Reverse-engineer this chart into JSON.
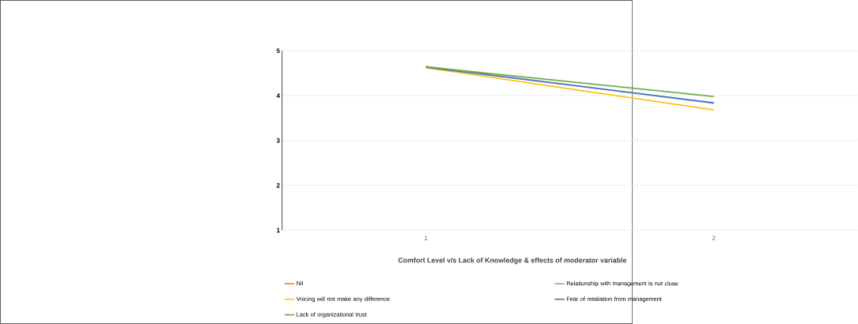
{
  "chart_data": {
    "type": "line",
    "title": "Comfort Level v/s Lack of Knowledge & effects of moderator variable",
    "categories": [
      "1",
      "2"
    ],
    "series": [
      {
        "name": "Nil",
        "color": "#ed7d31",
        "values": [
          null,
          null
        ]
      },
      {
        "name": "Relationship with management is not close",
        "color": "#a5a5a5",
        "values": [
          4.65,
          3.83
        ]
      },
      {
        "name": "Voicing will not make any difference",
        "color": "#ffc000",
        "values": [
          4.62,
          3.68
        ]
      },
      {
        "name": "Fear of retaliation from management",
        "color": "#4472c4",
        "values": [
          4.63,
          3.84
        ]
      },
      {
        "name": "Lack of organizational trust",
        "color": "#70ad47",
        "values": [
          4.64,
          3.98
        ]
      }
    ],
    "ylim": [
      1,
      5
    ],
    "yticks": [
      1,
      2,
      3,
      4,
      5
    ],
    "grid": "y",
    "legend": "bottom",
    "marker": "none",
    "line_style": "solid"
  }
}
